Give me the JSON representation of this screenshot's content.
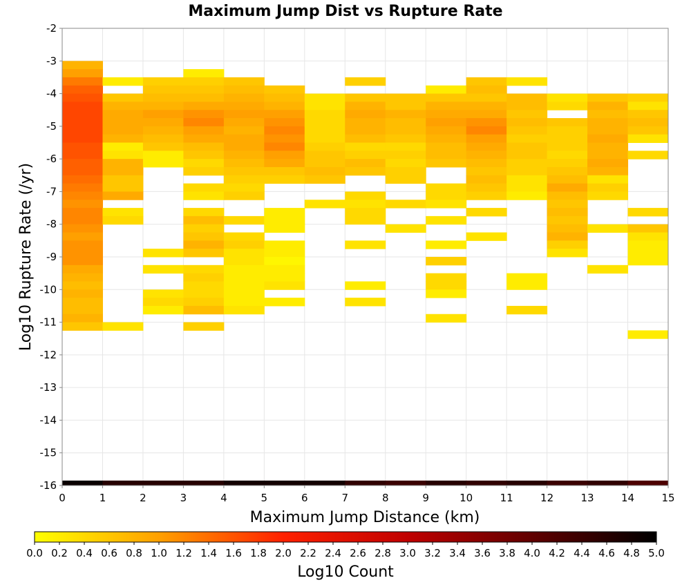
{
  "chart_data": {
    "type": "heatmap",
    "title": "Maximum Jump Dist vs Rupture Rate",
    "xlabel": "Maximum Jump Distance (km)",
    "ylabel": "Log10 Rupture Rate (/yr)",
    "colorbar_label": "Log10 Count",
    "xlim": [
      0,
      15
    ],
    "ylim": [
      -16,
      -2
    ],
    "x_bin_width": 1,
    "y_bin_width": 0.25,
    "x_ticks": [
      "0",
      "1",
      "2",
      "3",
      "4",
      "5",
      "6",
      "7",
      "8",
      "9",
      "10",
      "11",
      "12",
      "13",
      "14",
      "15"
    ],
    "y_ticks": [
      "-2",
      "-3",
      "-4",
      "-5",
      "-6",
      "-7",
      "-8",
      "-9",
      "-10",
      "-11",
      "-12",
      "-13",
      "-14",
      "-15",
      "-16"
    ],
    "colorbar_ticks": [
      "0.0",
      "0.2",
      "0.4",
      "0.6",
      "0.8",
      "1.0",
      "1.2",
      "1.4",
      "1.6",
      "1.8",
      "2.0",
      "2.2",
      "2.4",
      "2.6",
      "2.8",
      "3.0",
      "3.2",
      "3.4",
      "3.6",
      "3.8",
      "4.0",
      "4.2",
      "4.4",
      "4.6",
      "4.8",
      "5.0"
    ],
    "color_range": [
      0,
      5
    ],
    "colorscale": [
      "#ffff00",
      "#ffa000",
      "#ff2000",
      "#c00000",
      "#600000",
      "#000000"
    ],
    "grid": true,
    "columns": [
      {
        "x": 0,
        "start": -3.0,
        "values": [
          0.8,
          1.0,
          1.3,
          1.5,
          1.6,
          1.7,
          1.7,
          1.7,
          1.7,
          1.7,
          1.6,
          1.6,
          1.5,
          1.5,
          1.4,
          1.3,
          1.2,
          1.1,
          1.2,
          1.2,
          1.1,
          1.0,
          1.1,
          1.1,
          1.1,
          0.9,
          0.8,
          0.7,
          0.8,
          0.7,
          0.7,
          0.8,
          0.6
        ]
      },
      {
        "x": 1,
        "start": -3.5,
        "values": [
          0.2,
          null,
          0.6,
          0.8,
          0.9,
          0.9,
          0.9,
          0.8,
          0.2,
          0.3,
          0.8,
          0.8,
          0.6,
          0.6,
          0.9,
          null,
          0.3,
          0.4,
          null,
          null,
          null,
          null,
          null,
          null,
          null,
          null,
          null,
          null,
          null,
          null,
          0.3
        ]
      },
      {
        "x": 2,
        "start": -3.5,
        "values": [
          0.5,
          0.6,
          0.7,
          0.8,
          1.0,
          0.9,
          0.8,
          0.7,
          0.6,
          0.2,
          0.2,
          null,
          null,
          null,
          null,
          null,
          null,
          null,
          null,
          null,
          null,
          0.3,
          null,
          0.3,
          null,
          null,
          0.3,
          0.4,
          0.2
        ]
      },
      {
        "x": 3,
        "start": -3.25,
        "values": [
          0.2,
          0.5,
          0.6,
          0.7,
          0.9,
          1.1,
          1.2,
          1.0,
          0.9,
          0.7,
          0.6,
          0.4,
          0.5,
          null,
          0.4,
          0.3,
          null,
          0.4,
          0.7,
          0.5,
          0.6,
          0.8,
          0.6,
          null,
          0.4,
          0.5,
          0.4,
          0.4,
          0.5,
          0.7,
          null,
          0.5
        ]
      },
      {
        "x": 4,
        "start": -3.5,
        "values": [
          0.6,
          0.7,
          0.8,
          0.9,
          1.0,
          0.9,
          0.8,
          0.9,
          0.9,
          0.8,
          0.7,
          0.6,
          0.5,
          0.4,
          0.5,
          null,
          null,
          0.4,
          null,
          0.4,
          0.5,
          0.3,
          0.3,
          0.2,
          0.2,
          0.2,
          0.2,
          0.2,
          0.3
        ]
      },
      {
        "x": 5,
        "start": -3.75,
        "values": [
          0.6,
          0.7,
          0.8,
          1.0,
          1.1,
          1.2,
          1.1,
          1.2,
          1.0,
          0.9,
          0.6,
          0.5,
          null,
          null,
          null,
          0.2,
          0.2,
          0.2,
          null,
          0.2,
          0.2,
          0.1,
          0.2,
          0.2,
          0.3,
          null,
          0.2
        ]
      },
      {
        "x": 6,
        "start": -4.0,
        "values": [
          0.3,
          0.3,
          0.4,
          0.4,
          0.4,
          0.4,
          0.5,
          0.6,
          0.6,
          0.7,
          0.6,
          null,
          null,
          0.3
        ]
      },
      {
        "x": 7,
        "start": -3.5,
        "values": [
          0.5,
          null,
          0.6,
          0.8,
          0.9,
          0.8,
          0.8,
          0.7,
          0.4,
          0.5,
          0.7,
          0.6,
          null,
          null,
          0.4,
          0.3,
          0.4,
          0.4,
          null,
          null,
          0.3,
          null,
          null,
          null,
          null,
          0.2,
          null,
          0.3
        ]
      },
      {
        "x": 8,
        "start": -4.0,
        "values": [
          0.6,
          0.6,
          0.8,
          0.7,
          0.7,
          0.6,
          0.4,
          0.5,
          0.4,
          0.5,
          0.5,
          null,
          null,
          0.4,
          null,
          null,
          0.3
        ]
      },
      {
        "x": 9,
        "start": -3.75,
        "values": [
          0.2,
          0.6,
          0.8,
          0.9,
          1.0,
          0.9,
          0.8,
          0.7,
          0.7,
          0.6,
          null,
          null,
          0.4,
          0.4,
          0.3,
          null,
          0.3,
          null,
          null,
          0.2,
          null,
          0.5,
          null,
          0.4,
          0.4,
          0.2,
          null,
          null,
          0.3
        ]
      },
      {
        "x": 10,
        "start": -3.5,
        "values": [
          0.6,
          0.7,
          0.6,
          0.8,
          0.9,
          1.1,
          1.2,
          1.0,
          0.9,
          0.8,
          0.7,
          0.6,
          0.7,
          0.6,
          0.5,
          null,
          0.4,
          null,
          null,
          0.3
        ]
      },
      {
        "x": 11,
        "start": -3.5,
        "values": [
          0.3,
          null,
          0.7,
          0.7,
          0.6,
          0.7,
          0.6,
          0.5,
          0.6,
          0.6,
          0.5,
          0.5,
          0.3,
          0.3,
          0.2,
          null,
          null,
          null,
          null,
          null,
          null,
          null,
          null,
          null,
          0.2,
          0.2,
          null,
          null,
          0.4
        ]
      },
      {
        "x": 12,
        "start": -4.0,
        "values": [
          0.3,
          0.4,
          null,
          0.6,
          0.5,
          0.5,
          0.5,
          0.4,
          0.5,
          0.6,
          0.7,
          0.9,
          0.7,
          0.6,
          0.7,
          0.6,
          0.7,
          0.8,
          0.5,
          0.3
        ]
      },
      {
        "x": 13,
        "start": -4.0,
        "values": [
          0.6,
          0.8,
          0.7,
          0.8,
          0.8,
          0.9,
          0.8,
          0.8,
          0.9,
          0.8,
          0.3,
          0.5,
          0.4,
          null,
          null,
          null,
          0.3,
          null,
          null,
          null,
          null,
          0.3
        ]
      },
      {
        "x": 14,
        "start": -4.0,
        "values": [
          0.5,
          0.3,
          0.6,
          0.7,
          0.6,
          0.3,
          null,
          0.4,
          null,
          null,
          null,
          null,
          null,
          null,
          0.4,
          null,
          0.6,
          0.3,
          0.2,
          0.2,
          0.2,
          null,
          null,
          null,
          null,
          null,
          null,
          null,
          null,
          0.2
        ]
      }
    ],
    "bottom_row": {
      "y0": -16.0,
      "y1": -15.85,
      "values": [
        4.9,
        4.6,
        4.6,
        4.6,
        4.8,
        4.8,
        4.8,
        4.5,
        4.4,
        4.6,
        4.5,
        4.6,
        4.4,
        4.5,
        4.2
      ]
    }
  }
}
